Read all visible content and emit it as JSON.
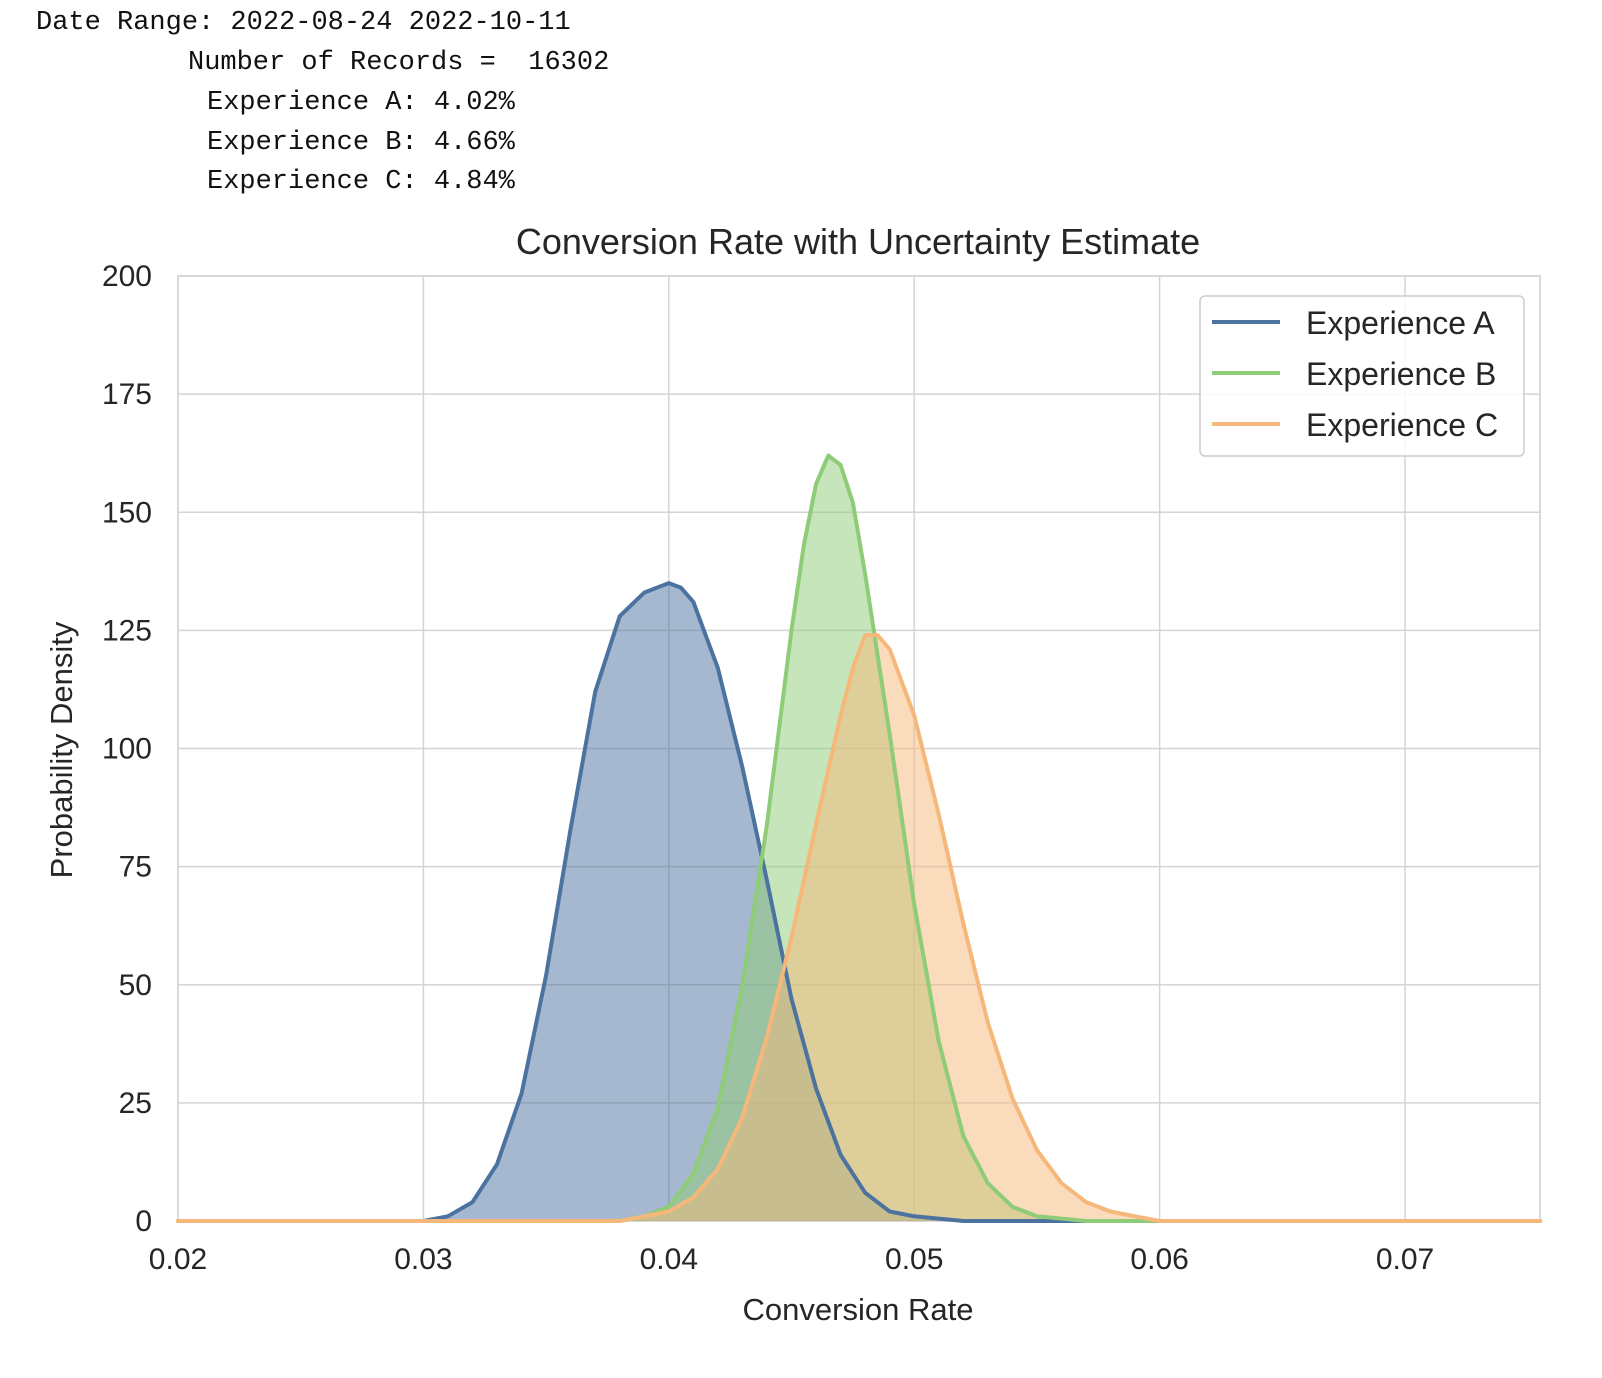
{
  "stats": {
    "date_range": "Date Range: 2022-08-24 2022-10-11",
    "records": "Number of Records =  16302",
    "exp_a": "Experience A: 4.02%",
    "exp_b": "Experience B: 4.66%",
    "exp_c": "Experience C: 4.84%"
  },
  "chart_data": {
    "type": "area",
    "title": "Conversion Rate with Uncertainty Estimate",
    "xlabel": "Conversion Rate",
    "ylabel": "Probability Density",
    "xlim": [
      0.02,
      0.0755
    ],
    "ylim": [
      0,
      200
    ],
    "xticks": [
      0.02,
      0.03,
      0.04,
      0.05,
      0.06,
      0.07
    ],
    "xtick_labels": [
      "0.02",
      "0.03",
      "0.04",
      "0.05",
      "0.06",
      "0.07"
    ],
    "yticks": [
      0,
      25,
      50,
      75,
      100,
      125,
      150,
      175,
      200
    ],
    "ytick_labels": [
      "0",
      "25",
      "50",
      "75",
      "100",
      "125",
      "150",
      "175",
      "200"
    ],
    "grid": true,
    "legend_position": "top-right",
    "series": [
      {
        "name": "Experience A",
        "color": "#4c72a0",
        "x": [
          0.02,
          0.03,
          0.031,
          0.032,
          0.033,
          0.034,
          0.035,
          0.036,
          0.037,
          0.038,
          0.039,
          0.0395,
          0.04,
          0.0405,
          0.041,
          0.0415,
          0.042,
          0.043,
          0.044,
          0.045,
          0.046,
          0.047,
          0.048,
          0.049,
          0.05,
          0.052,
          0.0755
        ],
        "y": [
          0,
          0,
          1,
          4,
          12,
          27,
          52,
          83,
          112,
          128,
          133,
          134,
          135,
          134,
          131,
          124,
          117,
          96,
          72,
          47,
          28,
          14,
          6,
          2,
          1,
          0,
          0
        ]
      },
      {
        "name": "Experience B",
        "color": "#8fcc78",
        "x": [
          0.02,
          0.038,
          0.039,
          0.04,
          0.041,
          0.042,
          0.043,
          0.044,
          0.045,
          0.0455,
          0.046,
          0.0465,
          0.047,
          0.0475,
          0.048,
          0.049,
          0.05,
          0.051,
          0.052,
          0.053,
          0.054,
          0.055,
          0.057,
          0.0755
        ],
        "y": [
          0,
          0,
          1,
          3,
          10,
          24,
          50,
          84,
          125,
          143,
          156,
          162,
          160,
          152,
          137,
          103,
          67,
          38,
          18,
          8,
          3,
          1,
          0,
          0
        ]
      },
      {
        "name": "Experience C",
        "color": "#f6b87a",
        "x": [
          0.02,
          0.038,
          0.039,
          0.04,
          0.041,
          0.042,
          0.043,
          0.044,
          0.045,
          0.046,
          0.047,
          0.0475,
          0.048,
          0.0485,
          0.049,
          0.05,
          0.051,
          0.052,
          0.053,
          0.054,
          0.055,
          0.056,
          0.057,
          0.058,
          0.059,
          0.06,
          0.0755
        ],
        "y": [
          0,
          0,
          1,
          2,
          5,
          11,
          22,
          39,
          60,
          84,
          107,
          117,
          124,
          124,
          121,
          107,
          86,
          63,
          42,
          26,
          15,
          8,
          4,
          2,
          1,
          0,
          0
        ]
      }
    ]
  }
}
